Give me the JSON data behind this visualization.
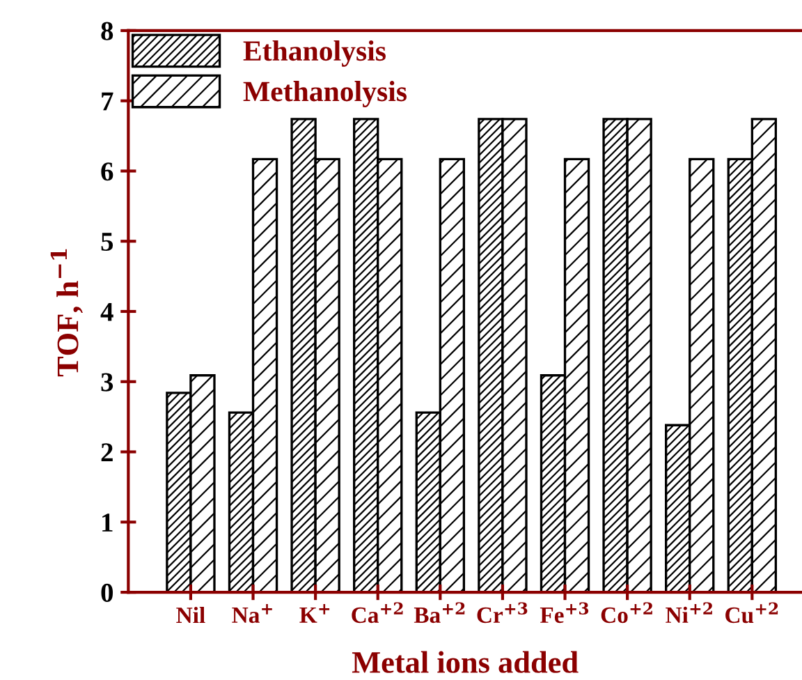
{
  "chart_data": {
    "type": "bar",
    "xlabel": "Metal ions added",
    "ylabel": "TOF, h$^{−1}$",
    "categories": [
      "Nil",
      "Na$^{+}$",
      "K$^{+}$",
      "Ca$^{+2}$",
      "Ba$^{+2}$",
      "Cr$^{+3}$",
      "Fe$^{+3}$",
      "Co$^{+2}$",
      "Ni$^{+2}$",
      "Cu$^{+2}$"
    ],
    "series": [
      {
        "name": "Ethanolysis",
        "color": "#000000",
        "values": [
          2.84,
          2.56,
          6.74,
          6.74,
          2.56,
          6.74,
          3.09,
          6.74,
          2.38,
          6.17
        ]
      },
      {
        "name": "Methanolysis",
        "color": "#000000",
        "values": [
          3.09,
          6.17,
          6.17,
          6.17,
          6.17,
          6.74,
          6.17,
          6.74,
          6.17,
          6.74
        ]
      }
    ],
    "ylim": [
      0,
      8
    ],
    "yticks": [
      0,
      1,
      2,
      3,
      4,
      5,
      6,
      7,
      8
    ],
    "grid": false,
    "legend": "top left"
  }
}
